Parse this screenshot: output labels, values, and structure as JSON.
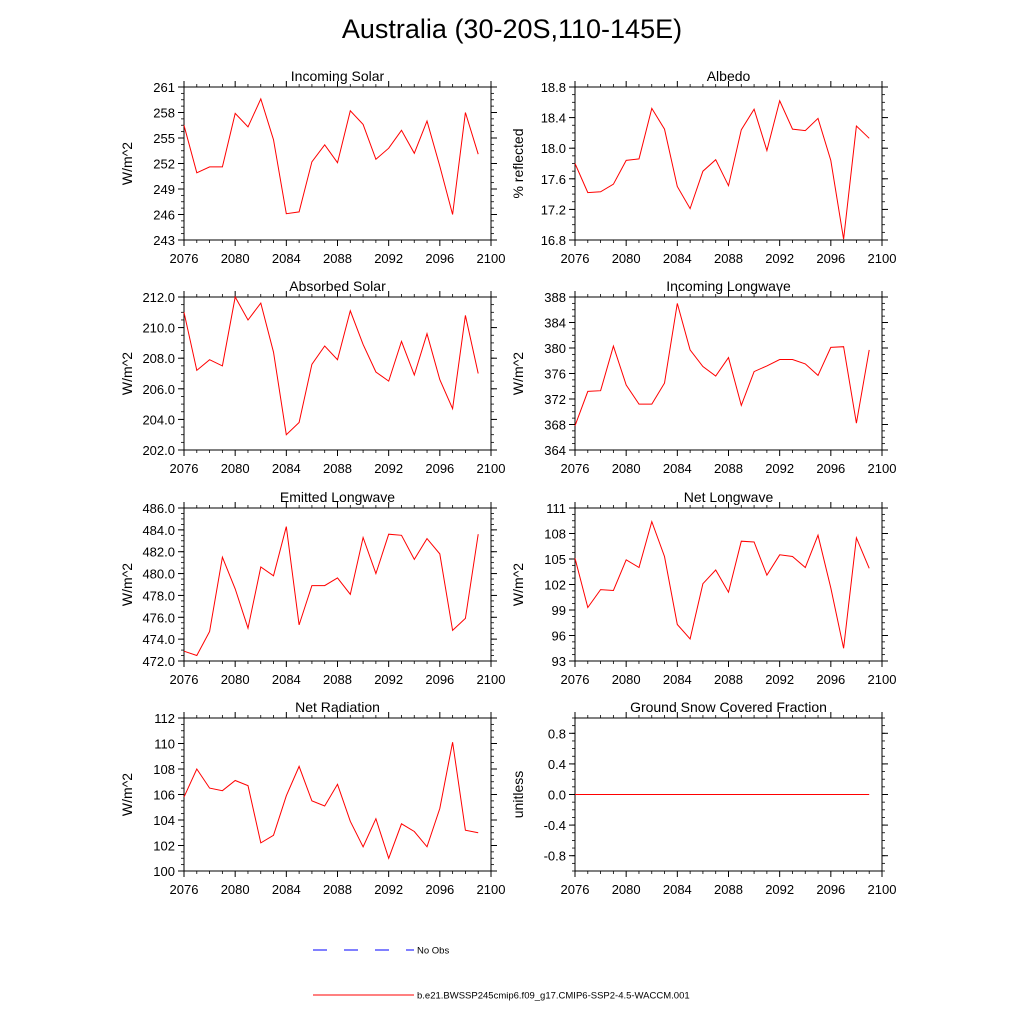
{
  "title": "Australia (30-20S,110-145E)",
  "legend": {
    "obs_label": "No Obs",
    "model_label": "b.e21.BWSSP245cmip6.f09_g17.CMIP6-SSP2-4.5-WACCM.001"
  },
  "colors": {
    "model": "#ff0000",
    "obs": "#0000ff",
    "axis": "#000000"
  },
  "chart_data": [
    {
      "type": "line",
      "title": "Incoming Solar",
      "ylabel": "W/m^2",
      "xlim": [
        2076,
        2100
      ],
      "ylim": [
        243,
        261
      ],
      "xticks": [
        2076,
        2080,
        2084,
        2088,
        2092,
        2096,
        2100
      ],
      "xtick_labels": [
        "2076",
        "2080",
        "2084",
        "2088",
        "2092",
        "2096",
        "2100"
      ],
      "yticks": [
        243,
        246,
        249,
        252,
        255,
        258,
        261
      ],
      "ytick_labels": [
        "243",
        "246",
        "249",
        "252",
        "255",
        "258",
        "261"
      ],
      "series": [
        {
          "x": [
            2076,
            2077,
            2078,
            2079,
            2080,
            2081,
            2082,
            2083,
            2084,
            2085,
            2086,
            2087,
            2088,
            2089,
            2090,
            2091,
            2092,
            2093,
            2094,
            2095,
            2096,
            2097,
            2098,
            2099
          ],
          "values": [
            256.5,
            250.9,
            251.6,
            251.6,
            257.9,
            256.3,
            259.6,
            254.8,
            246.1,
            246.3,
            252.2,
            254.2,
            252.1,
            258.2,
            256.6,
            252.5,
            253.8,
            255.9,
            253.2,
            257,
            251.7,
            246,
            258,
            253.1
          ]
        }
      ]
    },
    {
      "type": "line",
      "title": "Albedo",
      "ylabel": "% reflected",
      "xlim": [
        2076,
        2100
      ],
      "ylim": [
        16.8,
        18.8
      ],
      "xticks": [
        2076,
        2080,
        2084,
        2088,
        2092,
        2096,
        2100
      ],
      "xtick_labels": [
        "2076",
        "2080",
        "2084",
        "2088",
        "2092",
        "2096",
        "2100"
      ],
      "yticks": [
        16.8,
        17.2,
        17.6,
        18.0,
        18.4,
        18.8
      ],
      "ytick_labels": [
        "16.8",
        "17.2",
        "17.6",
        "18.0",
        "18.4",
        "18.8"
      ],
      "series": [
        {
          "x": [
            2076,
            2077,
            2078,
            2079,
            2080,
            2081,
            2082,
            2083,
            2084,
            2085,
            2086,
            2087,
            2088,
            2089,
            2090,
            2091,
            2092,
            2093,
            2094,
            2095,
            2096,
            2097,
            2098,
            2099
          ],
          "values": [
            17.8,
            17.42,
            17.43,
            17.53,
            17.84,
            17.86,
            18.52,
            18.25,
            17.5,
            17.21,
            17.7,
            17.85,
            17.51,
            18.24,
            18.51,
            17.97,
            18.62,
            18.25,
            18.23,
            18.39,
            17.84,
            16.81,
            18.29,
            18.13
          ]
        }
      ]
    },
    {
      "type": "line",
      "title": "Absorbed Solar",
      "ylabel": "W/m^2",
      "xlim": [
        2076,
        2100
      ],
      "ylim": [
        202.0,
        212.0
      ],
      "xticks": [
        2076,
        2080,
        2084,
        2088,
        2092,
        2096,
        2100
      ],
      "xtick_labels": [
        "2076",
        "2080",
        "2084",
        "2088",
        "2092",
        "2096",
        "2100"
      ],
      "yticks": [
        202,
        204,
        206,
        208,
        210,
        212
      ],
      "ytick_labels": [
        "202.0",
        "204.0",
        "206.0",
        "208.0",
        "210.0",
        "212.0"
      ],
      "series": [
        {
          "x": [
            2076,
            2077,
            2078,
            2079,
            2080,
            2081,
            2082,
            2083,
            2084,
            2085,
            2086,
            2087,
            2088,
            2089,
            2090,
            2091,
            2092,
            2093,
            2094,
            2095,
            2096,
            2097,
            2098,
            2099
          ],
          "values": [
            211,
            207.2,
            207.9,
            207.5,
            212,
            210.5,
            211.6,
            208.4,
            203,
            203.8,
            207.6,
            208.8,
            207.9,
            211.1,
            208.9,
            207.1,
            206.5,
            209.1,
            206.9,
            209.6,
            206.6,
            204.7,
            210.8,
            207
          ]
        }
      ]
    },
    {
      "type": "line",
      "title": "Incoming Longwave",
      "ylabel": "W/m^2",
      "xlim": [
        2076,
        2100
      ],
      "ylim": [
        364,
        388
      ],
      "xticks": [
        2076,
        2080,
        2084,
        2088,
        2092,
        2096,
        2100
      ],
      "xtick_labels": [
        "2076",
        "2080",
        "2084",
        "2088",
        "2092",
        "2096",
        "2100"
      ],
      "yticks": [
        364,
        368,
        372,
        376,
        380,
        384,
        388
      ],
      "ytick_labels": [
        "364",
        "368",
        "372",
        "376",
        "380",
        "384",
        "388"
      ],
      "series": [
        {
          "x": [
            2076,
            2077,
            2078,
            2079,
            2080,
            2081,
            2082,
            2083,
            2084,
            2085,
            2086,
            2087,
            2088,
            2089,
            2090,
            2091,
            2092,
            2093,
            2094,
            2095,
            2096,
            2097,
            2098,
            2099
          ],
          "values": [
            367.8,
            373.2,
            373.3,
            380.3,
            374.2,
            371.2,
            371.2,
            374.5,
            387,
            379.7,
            377.1,
            375.6,
            378.5,
            371,
            376.3,
            377.2,
            378.2,
            378.2,
            377.5,
            375.7,
            380.1,
            380.2,
            368.2,
            379.7
          ]
        }
      ]
    },
    {
      "type": "line",
      "title": "Emitted Longwave",
      "ylabel": "W/m^2",
      "xlim": [
        2076,
        2100
      ],
      "ylim": [
        472.0,
        486.0
      ],
      "xticks": [
        2076,
        2080,
        2084,
        2088,
        2092,
        2096,
        2100
      ],
      "xtick_labels": [
        "2076",
        "2080",
        "2084",
        "2088",
        "2092",
        "2096",
        "2100"
      ],
      "yticks": [
        472,
        474,
        476,
        478,
        480,
        482,
        484,
        486
      ],
      "ytick_labels": [
        "472.0",
        "474.0",
        "476.0",
        "478.0",
        "480.0",
        "482.0",
        "484.0",
        "486.0"
      ],
      "series": [
        {
          "x": [
            2076,
            2077,
            2078,
            2079,
            2080,
            2081,
            2082,
            2083,
            2084,
            2085,
            2086,
            2087,
            2088,
            2089,
            2090,
            2091,
            2092,
            2093,
            2094,
            2095,
            2096,
            2097,
            2098,
            2099
          ],
          "values": [
            472.9,
            472.5,
            474.7,
            481.5,
            478.6,
            475,
            480.6,
            479.8,
            484.3,
            475.3,
            478.9,
            478.9,
            479.6,
            478.1,
            483.3,
            480,
            483.6,
            483.5,
            481.3,
            483.2,
            481.8,
            474.8,
            475.9,
            483.6
          ]
        }
      ]
    },
    {
      "type": "line",
      "title": "Net Longwave",
      "ylabel": "W/m^2",
      "xlim": [
        2076,
        2100
      ],
      "ylim": [
        93,
        111
      ],
      "xticks": [
        2076,
        2080,
        2084,
        2088,
        2092,
        2096,
        2100
      ],
      "xtick_labels": [
        "2076",
        "2080",
        "2084",
        "2088",
        "2092",
        "2096",
        "2100"
      ],
      "yticks": [
        93,
        96,
        99,
        102,
        105,
        108,
        111
      ],
      "ytick_labels": [
        "93",
        "96",
        "99",
        "102",
        "105",
        "108",
        "111"
      ],
      "series": [
        {
          "x": [
            2076,
            2077,
            2078,
            2079,
            2080,
            2081,
            2082,
            2083,
            2084,
            2085,
            2086,
            2087,
            2088,
            2089,
            2090,
            2091,
            2092,
            2093,
            2094,
            2095,
            2096,
            2097,
            2098,
            2099
          ],
          "values": [
            105.1,
            99.3,
            101.4,
            101.3,
            104.9,
            104,
            109.4,
            105.3,
            97.3,
            95.6,
            102.1,
            103.7,
            101.1,
            107.1,
            107,
            103.1,
            105.5,
            105.3,
            104,
            107.8,
            101.6,
            94.5,
            107.5,
            103.9
          ]
        }
      ]
    },
    {
      "type": "line",
      "title": "Net Radiation",
      "ylabel": "W/m^2",
      "xlim": [
        2076,
        2100
      ],
      "ylim": [
        100,
        112
      ],
      "xticks": [
        2076,
        2080,
        2084,
        2088,
        2092,
        2096,
        2100
      ],
      "xtick_labels": [
        "2076",
        "2080",
        "2084",
        "2088",
        "2092",
        "2096",
        "2100"
      ],
      "yticks": [
        100,
        102,
        104,
        106,
        108,
        110,
        112
      ],
      "ytick_labels": [
        "100",
        "102",
        "104",
        "106",
        "108",
        "110",
        "112"
      ],
      "series": [
        {
          "x": [
            2076,
            2077,
            2078,
            2079,
            2080,
            2081,
            2082,
            2083,
            2084,
            2085,
            2086,
            2087,
            2088,
            2089,
            2090,
            2091,
            2092,
            2093,
            2094,
            2095,
            2096,
            2097,
            2098,
            2099
          ],
          "values": [
            105.8,
            108,
            106.5,
            106.3,
            107.1,
            106.7,
            102.2,
            102.8,
            105.9,
            108.2,
            105.5,
            105.1,
            106.8,
            103.9,
            101.9,
            104.1,
            101,
            103.7,
            103.1,
            101.9,
            104.9,
            110.1,
            103.2,
            103
          ]
        }
      ]
    },
    {
      "type": "line",
      "title": "Ground Snow Covered Fraction",
      "ylabel": "unitless",
      "xlim": [
        2076,
        2100
      ],
      "ylim": [
        -1.0,
        1.0
      ],
      "xticks": [
        2076,
        2080,
        2084,
        2088,
        2092,
        2096,
        2100
      ],
      "xtick_labels": [
        "2076",
        "2080",
        "2084",
        "2088",
        "2092",
        "2096",
        "2100"
      ],
      "yticks": [
        -0.8,
        -0.4,
        0.0,
        0.4,
        0.8
      ],
      "ytick_labels": [
        "-0.8",
        "-0.4",
        "0.0",
        "0.4",
        "0.8"
      ],
      "series": [
        {
          "x": [
            2076,
            2077,
            2078,
            2079,
            2080,
            2081,
            2082,
            2083,
            2084,
            2085,
            2086,
            2087,
            2088,
            2089,
            2090,
            2091,
            2092,
            2093,
            2094,
            2095,
            2096,
            2097,
            2098,
            2099
          ],
          "values": [
            0,
            0,
            0,
            0,
            0,
            0,
            0,
            0,
            0,
            0,
            0,
            0,
            0,
            0,
            0,
            0,
            0,
            0,
            0,
            0,
            0,
            0,
            0,
            0
          ]
        }
      ]
    }
  ]
}
